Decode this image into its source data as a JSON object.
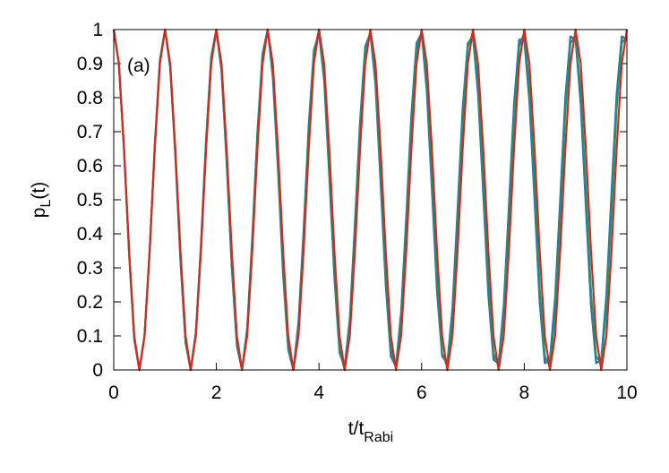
{
  "chart_data": {
    "type": "line",
    "xlabel_parts": [
      "t/t",
      "Rabi"
    ],
    "ylabel_parts": [
      "p",
      "L",
      "(t)"
    ],
    "annotation": "(a)",
    "xlim": [
      0,
      10
    ],
    "xticks": [
      0,
      2,
      4,
      6,
      8,
      10
    ],
    "ylim": [
      0,
      1
    ],
    "yticks": [
      0,
      0.1,
      0.2,
      0.3,
      0.4,
      0.5,
      0.6,
      0.7,
      0.8,
      0.9,
      1
    ],
    "x": [
      0,
      0.1,
      0.2,
      0.3,
      0.4,
      0.5,
      0.6,
      0.7,
      0.8,
      0.9,
      1,
      1.1,
      1.2,
      1.3,
      1.4,
      1.5,
      1.6,
      1.7,
      1.8,
      1.9,
      2,
      2.1,
      2.2,
      2.3,
      2.4,
      2.5,
      2.6,
      2.7,
      2.8,
      2.9,
      3,
      3.1,
      3.2,
      3.3,
      3.4,
      3.5,
      3.6,
      3.7,
      3.8,
      3.9,
      4,
      4.1,
      4.2,
      4.3,
      4.4,
      4.5,
      4.6,
      4.7,
      4.8,
      4.9,
      5,
      5.1,
      5.2,
      5.3,
      5.4,
      5.5,
      5.6,
      5.7,
      5.8,
      5.9,
      6,
      6.1,
      6.2,
      6.3,
      6.4,
      6.5,
      6.6,
      6.7,
      6.8,
      6.9,
      7,
      7.1,
      7.2,
      7.3,
      7.4,
      7.5,
      7.6,
      7.7,
      7.8,
      7.9,
      8,
      8.1,
      8.2,
      8.3,
      8.4,
      8.5,
      8.6,
      8.7,
      8.8,
      8.9,
      9,
      9.1,
      9.2,
      9.3,
      9.4,
      9.5,
      9.6,
      9.7,
      9.8,
      9.9,
      10
    ],
    "series": [
      {
        "color": "#2f6fb0",
        "values": [
          1.0,
          0.9,
          0.65,
          0.34,
          0.09,
          0,
          0.1,
          0.35,
          0.66,
          0.91,
          1.0,
          0.89,
          0.63,
          0.32,
          0.08,
          0,
          0.11,
          0.37,
          0.68,
          0.92,
          1.0,
          0.88,
          0.61,
          0.3,
          0.07,
          0,
          0.12,
          0.39,
          0.7,
          0.93,
          1.0,
          0.86,
          0.59,
          0.28,
          0.06,
          0,
          0.14,
          0.41,
          0.72,
          0.94,
          0.99,
          0.85,
          0.57,
          0.27,
          0.05,
          0.01,
          0.15,
          0.43,
          0.73,
          0.95,
          0.99,
          0.84,
          0.55,
          0.25,
          0.04,
          0.01,
          0.17,
          0.45,
          0.75,
          0.96,
          0.99,
          0.82,
          0.53,
          0.23,
          0.04,
          0.02,
          0.18,
          0.47,
          0.77,
          0.96,
          0.98,
          0.81,
          0.52,
          0.22,
          0.03,
          0.02,
          0.19,
          0.48,
          0.78,
          0.97,
          0.97,
          0.79,
          0.5,
          0.2,
          0.02,
          0.03,
          0.21,
          0.5,
          0.8,
          0.98,
          0.97,
          0.78,
          0.48,
          0.19,
          0.02,
          0.03,
          0.22,
          0.52,
          0.81,
          0.98,
          0.97
        ]
      },
      {
        "color": "#1a9478",
        "values": [
          1.0,
          0.9,
          0.65,
          0.34,
          0.09,
          0,
          0.1,
          0.35,
          0.66,
          0.91,
          1.0,
          0.89,
          0.64,
          0.33,
          0.08,
          0,
          0.11,
          0.36,
          0.67,
          0.92,
          1.0,
          0.88,
          0.62,
          0.31,
          0.08,
          0,
          0.12,
          0.38,
          0.69,
          0.92,
          1.0,
          0.88,
          0.61,
          0.3,
          0.07,
          0,
          0.12,
          0.39,
          0.7,
          0.93,
          1.0,
          0.87,
          0.6,
          0.29,
          0.06,
          0,
          0.13,
          0.4,
          0.71,
          0.94,
          0.99,
          0.86,
          0.58,
          0.28,
          0.06,
          0.01,
          0.14,
          0.42,
          0.72,
          0.94,
          0.99,
          0.85,
          0.57,
          0.27,
          0.05,
          0.01,
          0.15,
          0.43,
          0.73,
          0.95,
          0.99,
          0.84,
          0.56,
          0.26,
          0.05,
          0.01,
          0.16,
          0.44,
          0.74,
          0.95,
          0.99,
          0.83,
          0.55,
          0.24,
          0.04,
          0.01,
          0.17,
          0.45,
          0.76,
          0.96,
          0.98,
          0.82,
          0.53,
          0.23,
          0.04,
          0.02,
          0.18,
          0.47,
          0.77,
          0.96,
          0.98
        ]
      },
      {
        "color": "#d42a1c",
        "values": [
          1,
          0.9,
          0.65,
          0.35,
          0.1,
          0,
          0.1,
          0.35,
          0.65,
          0.9,
          1,
          0.9,
          0.65,
          0.35,
          0.1,
          0,
          0.1,
          0.35,
          0.65,
          0.9,
          1,
          0.9,
          0.65,
          0.35,
          0.1,
          0,
          0.1,
          0.35,
          0.65,
          0.9,
          1,
          0.9,
          0.65,
          0.35,
          0.1,
          0,
          0.1,
          0.35,
          0.65,
          0.9,
          1,
          0.9,
          0.65,
          0.35,
          0.1,
          0,
          0.1,
          0.35,
          0.65,
          0.9,
          1,
          0.9,
          0.65,
          0.35,
          0.1,
          0,
          0.1,
          0.35,
          0.65,
          0.9,
          1,
          0.9,
          0.65,
          0.35,
          0.1,
          0,
          0.1,
          0.35,
          0.65,
          0.9,
          1,
          0.9,
          0.65,
          0.35,
          0.1,
          0,
          0.1,
          0.35,
          0.65,
          0.9,
          1,
          0.9,
          0.65,
          0.35,
          0.1,
          0,
          0.1,
          0.35,
          0.65,
          0.9,
          1,
          0.9,
          0.65,
          0.35,
          0.1,
          0,
          0.1,
          0.35,
          0.65,
          0.9,
          1
        ]
      }
    ]
  }
}
